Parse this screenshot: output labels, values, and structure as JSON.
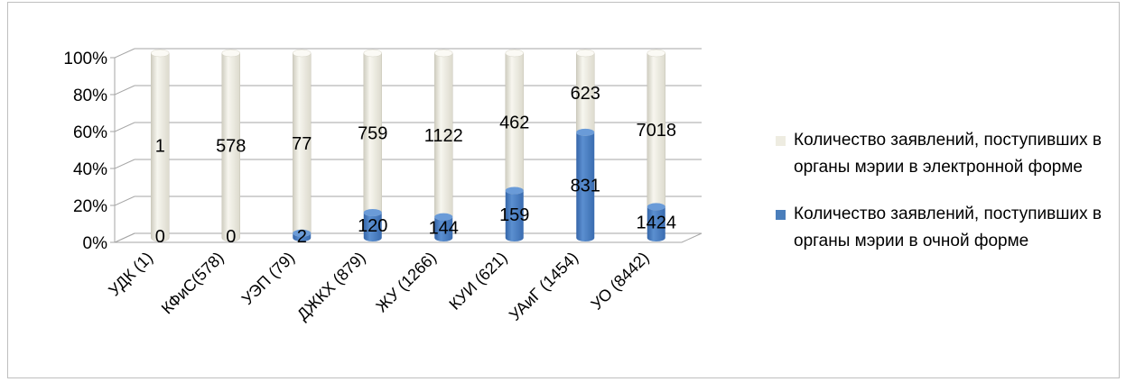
{
  "chart_data": {
    "type": "bar",
    "stacked": "percent",
    "style": "3d-cylinder",
    "categories": [
      "УДК (1)",
      "КФиС(578)",
      "УЭП (79)",
      "ДЖКХ (879)",
      "ЖУ (1266)",
      "КУИ (621)",
      "УАиГ (1454)",
      "УО (8442)"
    ],
    "series": [
      {
        "name": "Количество заявлений, поступивших в органы мэрии в очной форме",
        "color": "#4a7ebb",
        "values": [
          0,
          0,
          2,
          120,
          144,
          159,
          831,
          1424
        ]
      },
      {
        "name": "Количество заявлений, поступивших в органы мэрии в электронной форме",
        "color": "#eeece1",
        "values": [
          1,
          578,
          77,
          759,
          1122,
          462,
          623,
          7018
        ]
      }
    ],
    "yticks": [
      "0%",
      "20%",
      "40%",
      "60%",
      "80%",
      "100%"
    ],
    "ylim": [
      0,
      100
    ],
    "grid": true,
    "legend_position": "right"
  }
}
